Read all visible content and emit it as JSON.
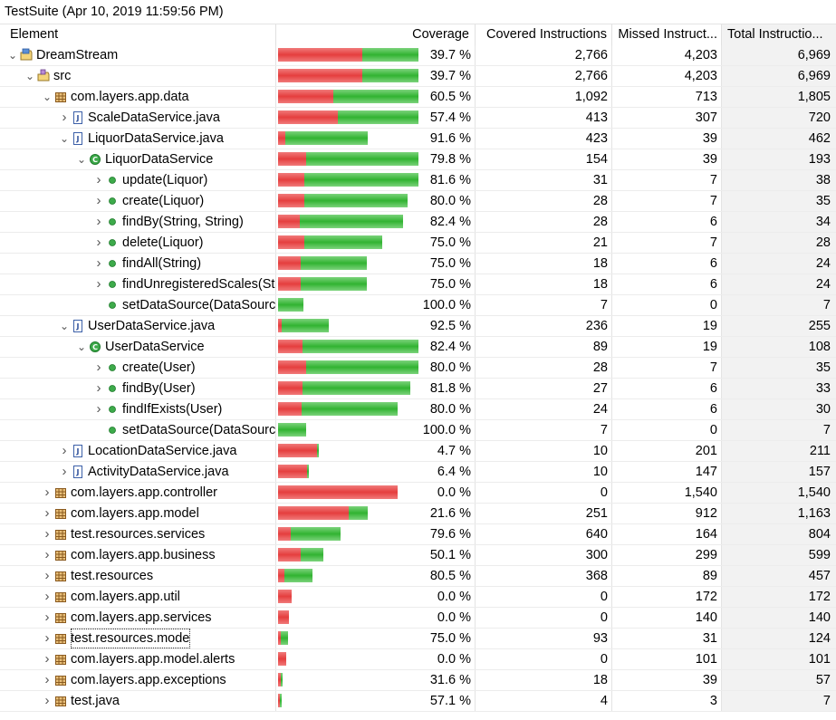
{
  "window": {
    "title": "TestSuite (Apr 10, 2019 11:59:56 PM)"
  },
  "columns": {
    "element": "Element",
    "coverage": "Coverage",
    "covered": "Covered Instructions",
    "missed": "Missed Instruct...",
    "total": "Total Instructio..."
  },
  "colors": {
    "covered": "#31b331",
    "missed": "#e53e3e",
    "sorted_column_bg": "#f2f2f2"
  },
  "rows": [
    {
      "name": "DreamStream",
      "type": "project",
      "level": 0,
      "expanded": true,
      "coverage": "39.7 %",
      "covered": "2,766",
      "missed": "4,203",
      "total": "6,969",
      "ratio": 0.397,
      "bar_fraction": 1.0
    },
    {
      "name": "src",
      "type": "source-folder",
      "level": 1,
      "expanded": true,
      "coverage": "39.7 %",
      "covered": "2,766",
      "missed": "4,203",
      "total": "6,969",
      "ratio": 0.397,
      "bar_fraction": 1.0
    },
    {
      "name": "com.layers.app.data",
      "type": "package",
      "level": 2,
      "expanded": true,
      "coverage": "60.5 %",
      "covered": "1,092",
      "missed": "713",
      "total": "1,805",
      "ratio": 0.605,
      "bar_fraction": 1.0
    },
    {
      "name": "ScaleDataService.java",
      "type": "java-file",
      "level": 3,
      "expanded": false,
      "coverage": "57.4 %",
      "covered": "413",
      "missed": "307",
      "total": "720",
      "ratio": 0.574,
      "bar_fraction": 1.0
    },
    {
      "name": "LiquorDataService.java",
      "type": "java-file",
      "level": 3,
      "expanded": true,
      "coverage": "91.6 %",
      "covered": "423",
      "missed": "39",
      "total": "462",
      "ratio": 0.916,
      "bar_fraction": 0.64
    },
    {
      "name": "LiquorDataService",
      "type": "class",
      "level": 4,
      "expanded": true,
      "coverage": "79.8 %",
      "covered": "154",
      "missed": "39",
      "total": "193",
      "ratio": 0.798,
      "bar_fraction": 1.0
    },
    {
      "name": "update(Liquor)",
      "type": "method",
      "level": 5,
      "expanded": false,
      "coverage": "81.6 %",
      "covered": "31",
      "missed": "7",
      "total": "38",
      "ratio": 0.816,
      "bar_fraction": 1.0
    },
    {
      "name": "create(Liquor)",
      "type": "method",
      "level": 5,
      "expanded": false,
      "coverage": "80.0 %",
      "covered": "28",
      "missed": "7",
      "total": "35",
      "ratio": 0.8,
      "bar_fraction": 0.92
    },
    {
      "name": "findBy(String, String)",
      "type": "method",
      "level": 5,
      "expanded": false,
      "coverage": "82.4 %",
      "covered": "28",
      "missed": "6",
      "total": "34",
      "ratio": 0.824,
      "bar_fraction": 0.89
    },
    {
      "name": "delete(Liquor)",
      "type": "method",
      "level": 5,
      "expanded": false,
      "coverage": "75.0 %",
      "covered": "21",
      "missed": "7",
      "total": "28",
      "ratio": 0.75,
      "bar_fraction": 0.74
    },
    {
      "name": "findAll(String)",
      "type": "method",
      "level": 5,
      "expanded": false,
      "coverage": "75.0 %",
      "covered": "18",
      "missed": "6",
      "total": "24",
      "ratio": 0.75,
      "bar_fraction": 0.63
    },
    {
      "name": "findUnregisteredScales(String)",
      "type": "method",
      "level": 5,
      "expanded": false,
      "coverage": "75.0 %",
      "covered": "18",
      "missed": "6",
      "total": "24",
      "ratio": 0.75,
      "bar_fraction": 0.63
    },
    {
      "name": "setDataSource(DataSource)",
      "type": "method",
      "level": 5,
      "leaf": true,
      "coverage": "100.0 %",
      "covered": "7",
      "missed": "0",
      "total": "7",
      "ratio": 1.0,
      "bar_fraction": 0.18
    },
    {
      "name": "UserDataService.java",
      "type": "java-file",
      "level": 3,
      "expanded": true,
      "coverage": "92.5 %",
      "covered": "236",
      "missed": "19",
      "total": "255",
      "ratio": 0.925,
      "bar_fraction": 0.36
    },
    {
      "name": "UserDataService",
      "type": "class",
      "level": 4,
      "expanded": true,
      "coverage": "82.4 %",
      "covered": "89",
      "missed": "19",
      "total": "108",
      "ratio": 0.824,
      "bar_fraction": 1.0
    },
    {
      "name": "create(User)",
      "type": "method",
      "level": 5,
      "expanded": false,
      "coverage": "80.0 %",
      "covered": "28",
      "missed": "7",
      "total": "35",
      "ratio": 0.8,
      "bar_fraction": 1.0
    },
    {
      "name": "findBy(User)",
      "type": "method",
      "level": 5,
      "expanded": false,
      "coverage": "81.8 %",
      "covered": "27",
      "missed": "6",
      "total": "33",
      "ratio": 0.818,
      "bar_fraction": 0.94
    },
    {
      "name": "findIfExists(User)",
      "type": "method",
      "level": 5,
      "expanded": false,
      "coverage": "80.0 %",
      "covered": "24",
      "missed": "6",
      "total": "30",
      "ratio": 0.8,
      "bar_fraction": 0.85
    },
    {
      "name": "setDataSource(DataSource)",
      "type": "method",
      "level": 5,
      "leaf": true,
      "coverage": "100.0 %",
      "covered": "7",
      "missed": "0",
      "total": "7",
      "ratio": 1.0,
      "bar_fraction": 0.2
    },
    {
      "name": "LocationDataService.java",
      "type": "java-file",
      "level": 3,
      "expanded": false,
      "coverage": "4.7 %",
      "covered": "10",
      "missed": "201",
      "total": "211",
      "ratio": 0.047,
      "bar_fraction": 0.29
    },
    {
      "name": "ActivityDataService.java",
      "type": "java-file",
      "level": 3,
      "expanded": false,
      "coverage": "6.4 %",
      "covered": "10",
      "missed": "147",
      "total": "157",
      "ratio": 0.064,
      "bar_fraction": 0.22
    },
    {
      "name": "com.layers.app.controller",
      "type": "package",
      "level": 2,
      "expanded": false,
      "coverage": "0.0 %",
      "covered": "0",
      "missed": "1,540",
      "total": "1,540",
      "ratio": 0.0,
      "bar_fraction": 0.85
    },
    {
      "name": "com.layers.app.model",
      "type": "package",
      "level": 2,
      "expanded": false,
      "coverage": "21.6 %",
      "covered": "251",
      "missed": "912",
      "total": "1,163",
      "ratio": 0.216,
      "bar_fraction": 0.64
    },
    {
      "name": "test.resources.services",
      "type": "package",
      "level": 2,
      "expanded": false,
      "coverage": "79.6 %",
      "covered": "640",
      "missed": "164",
      "total": "804",
      "ratio": 0.796,
      "bar_fraction": 0.445
    },
    {
      "name": "com.layers.app.business",
      "type": "package",
      "level": 2,
      "expanded": false,
      "coverage": "50.1 %",
      "covered": "300",
      "missed": "299",
      "total": "599",
      "ratio": 0.501,
      "bar_fraction": 0.32
    },
    {
      "name": "test.resources",
      "type": "package",
      "level": 2,
      "expanded": false,
      "coverage": "80.5 %",
      "covered": "368",
      "missed": "89",
      "total": "457",
      "ratio": 0.805,
      "bar_fraction": 0.245
    },
    {
      "name": "com.layers.app.util",
      "type": "package",
      "level": 2,
      "expanded": false,
      "coverage": "0.0 %",
      "covered": "0",
      "missed": "172",
      "total": "172",
      "ratio": 0.0,
      "bar_fraction": 0.095
    },
    {
      "name": "com.layers.app.services",
      "type": "package",
      "level": 2,
      "expanded": false,
      "coverage": "0.0 %",
      "covered": "0",
      "missed": "140",
      "total": "140",
      "ratio": 0.0,
      "bar_fraction": 0.078
    },
    {
      "name": "test.resources.mode",
      "type": "package",
      "level": 2,
      "expanded": false,
      "focused": true,
      "coverage": "75.0 %",
      "covered": "93",
      "missed": "31",
      "total": "124",
      "ratio": 0.75,
      "bar_fraction": 0.068
    },
    {
      "name": "com.layers.app.model.alerts",
      "type": "package",
      "level": 2,
      "expanded": false,
      "coverage": "0.0 %",
      "covered": "0",
      "missed": "101",
      "total": "101",
      "ratio": 0.0,
      "bar_fraction": 0.056
    },
    {
      "name": "com.layers.app.exceptions",
      "type": "package",
      "level": 2,
      "expanded": false,
      "coverage": "31.6 %",
      "covered": "18",
      "missed": "39",
      "total": "57",
      "ratio": 0.316,
      "bar_fraction": 0.03
    },
    {
      "name": "test.java",
      "type": "package",
      "level": 2,
      "expanded": false,
      "coverage": "57.1 %",
      "covered": "4",
      "missed": "3",
      "total": "7",
      "ratio": 0.571,
      "bar_fraction": 0.01
    }
  ]
}
